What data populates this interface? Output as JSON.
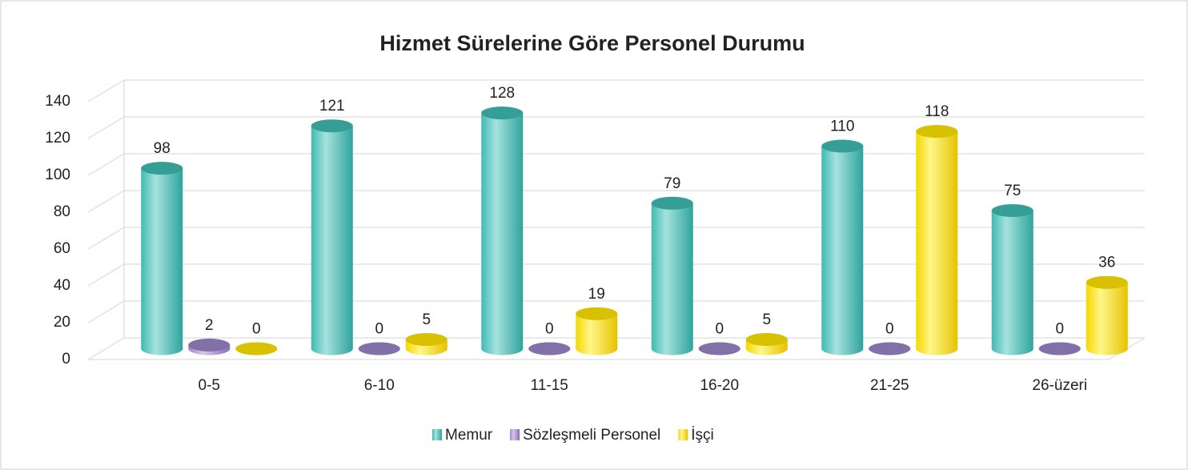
{
  "chart_data": {
    "type": "bar",
    "title": "Hizmet Sürelerine Göre Personel Durumu",
    "categories": [
      "0-5",
      "6-10",
      "11-15",
      "16-20",
      "21-25",
      "26-üzeri"
    ],
    "series": [
      {
        "name": "Memur",
        "color": "#3fbab2",
        "values": [
          98,
          121,
          128,
          79,
          110,
          75
        ]
      },
      {
        "name": "Sözleşmeli Personel",
        "color": "#9a86c6",
        "values": [
          2,
          0,
          0,
          0,
          0,
          0
        ]
      },
      {
        "name": "İşçi",
        "color": "#ffe400",
        "values": [
          0,
          5,
          19,
          5,
          118,
          36
        ]
      }
    ],
    "ylim": [
      0,
      140
    ],
    "yticks": [
      0,
      20,
      40,
      60,
      80,
      100,
      120,
      140
    ],
    "grid": true,
    "legend": "bottom"
  }
}
